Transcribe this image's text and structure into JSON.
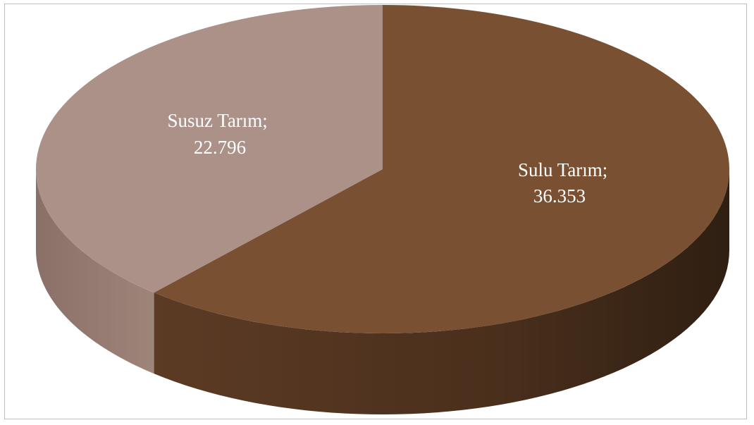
{
  "chart_data": {
    "type": "pie",
    "style": "3d",
    "slices": [
      {
        "label": "Sulu Tarım; 36.353",
        "name": "Sulu Tarım",
        "value": 36.353,
        "value_text": "36.353",
        "color": "#7a5033"
      },
      {
        "label": "Susuz Tarım; 22.796",
        "name": "Susuz Tarım",
        "value": 22.796,
        "value_text": "22.796",
        "color": "#ab9187"
      }
    ],
    "data_labels": [
      {
        "line1": "Sulu Tarım;",
        "line2": "36.353"
      },
      {
        "line1": "Susuz Tarım;",
        "line2": "22.796"
      }
    ],
    "legend": "none"
  }
}
